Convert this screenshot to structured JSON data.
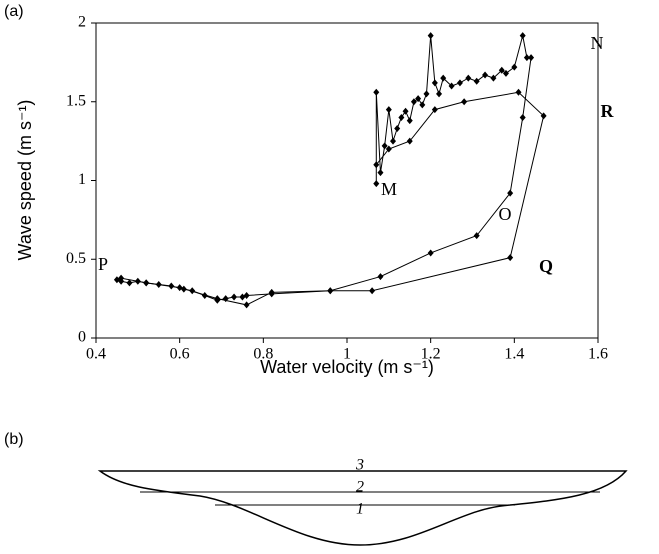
{
  "chart_data": {
    "type": "scatter",
    "panel_label": "(a)",
    "xlabel": "Water velocity (m s⁻¹)",
    "ylabel": "Wave speed (m s⁻¹)",
    "xlim": [
      0.4,
      1.6
    ],
    "xticks": [
      0.4,
      0.6,
      0.8,
      1,
      1.2,
      1.4,
      1.6
    ],
    "ylim": [
      0,
      2
    ],
    "yticks": [
      0,
      0.5,
      1,
      1.5,
      2
    ],
    "series": [
      {
        "color": "#000000",
        "x": [
          0.45,
          0.46,
          0.48,
          0.5,
          0.52,
          0.55,
          0.58,
          0.61,
          0.63,
          0.66,
          0.69,
          0.71,
          0.73,
          0.75,
          0.76,
          0.82,
          0.96,
          1.06,
          1.39,
          1.47,
          1.41,
          1.28,
          1.21,
          1.15,
          1.1,
          1.07
        ],
        "y": [
          0.37,
          0.36,
          0.35,
          0.36,
          0.35,
          0.34,
          0.33,
          0.31,
          0.3,
          0.27,
          0.24,
          0.25,
          0.26,
          0.26,
          0.27,
          0.28,
          0.3,
          0.3,
          0.51,
          1.41,
          1.56,
          1.5,
          1.45,
          1.25,
          1.2,
          1.1
        ]
      },
      {
        "color": "#000000",
        "x": [
          1.07,
          1.07,
          1.08,
          1.09,
          1.1,
          1.11,
          1.12,
          1.13,
          1.14,
          1.15,
          1.16,
          1.17,
          1.18,
          1.19,
          1.2,
          1.21,
          1.22,
          1.23,
          1.25,
          1.27,
          1.29,
          1.31,
          1.33,
          1.35,
          1.37,
          1.38,
          1.4,
          1.42,
          1.43,
          1.44,
          1.42,
          1.39,
          1.31,
          1.2,
          1.08,
          0.96,
          0.82,
          0.76,
          0.69,
          0.6,
          0.52,
          0.46
        ],
        "y": [
          0.98,
          1.56,
          1.05,
          1.22,
          1.45,
          1.25,
          1.33,
          1.4,
          1.44,
          1.38,
          1.5,
          1.52,
          1.48,
          1.55,
          1.92,
          1.62,
          1.55,
          1.65,
          1.6,
          1.62,
          1.65,
          1.63,
          1.67,
          1.65,
          1.7,
          1.68,
          1.72,
          1.92,
          1.78,
          1.78,
          1.4,
          0.92,
          0.65,
          0.54,
          0.39,
          0.3,
          0.29,
          0.21,
          0.25,
          0.32,
          0.35,
          0.38
        ]
      }
    ],
    "annotations": [
      "P",
      "Q",
      "R",
      "N",
      "M",
      "O"
    ]
  },
  "diagram": {
    "panel_label": "(b)",
    "levels": [
      "3",
      "2",
      "1"
    ]
  }
}
